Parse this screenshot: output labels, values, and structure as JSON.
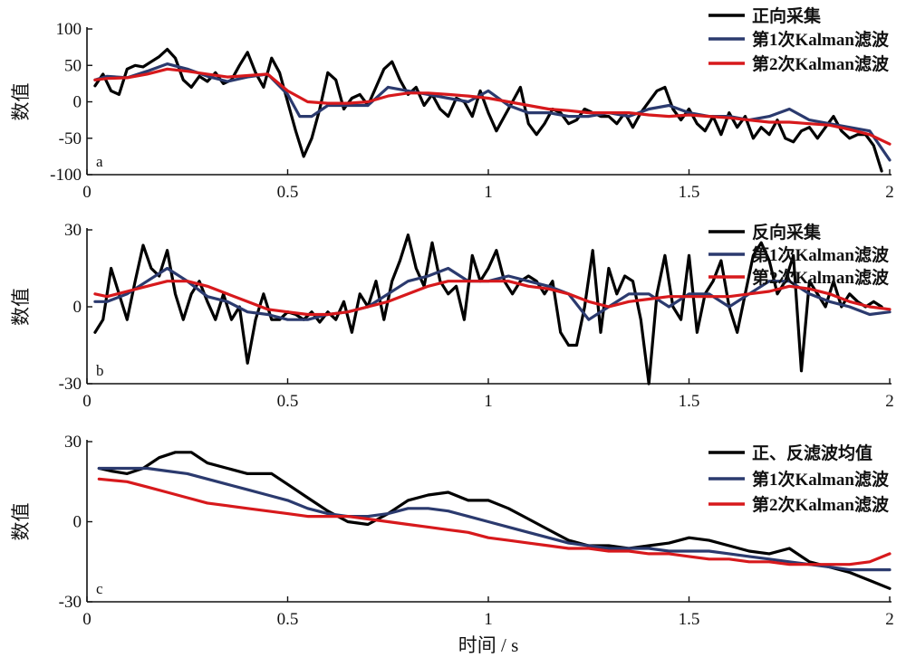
{
  "chart_data": [
    {
      "type": "line",
      "panel_label": "a",
      "ylabel": "数值",
      "xlim": [
        0,
        2
      ],
      "ylim": [
        -100,
        100
      ],
      "xticks": [
        "0",
        "0.5",
        "1",
        "1.5",
        "2"
      ],
      "yticks": [
        "100",
        "50",
        "0",
        "-50",
        "-100"
      ],
      "legend": "top-right",
      "series": [
        {
          "name": "正向采集",
          "color": "#000000",
          "x": [
            0.02,
            0.04,
            0.06,
            0.08,
            0.1,
            0.12,
            0.14,
            0.16,
            0.18,
            0.2,
            0.22,
            0.24,
            0.26,
            0.28,
            0.3,
            0.32,
            0.34,
            0.36,
            0.38,
            0.4,
            0.42,
            0.44,
            0.46,
            0.48,
            0.5,
            0.52,
            0.54,
            0.56,
            0.58,
            0.6,
            0.62,
            0.64,
            0.66,
            0.68,
            0.7,
            0.72,
            0.74,
            0.76,
            0.78,
            0.8,
            0.82,
            0.84,
            0.86,
            0.88,
            0.9,
            0.92,
            0.94,
            0.96,
            0.98,
            1.0,
            1.02,
            1.04,
            1.06,
            1.08,
            1.1,
            1.12,
            1.14,
            1.16,
            1.18,
            1.2,
            1.22,
            1.24,
            1.26,
            1.28,
            1.3,
            1.32,
            1.34,
            1.36,
            1.38,
            1.4,
            1.42,
            1.44,
            1.46,
            1.48,
            1.5,
            1.52,
            1.54,
            1.56,
            1.58,
            1.6,
            1.62,
            1.64,
            1.66,
            1.68,
            1.7,
            1.72,
            1.74,
            1.76,
            1.78,
            1.8,
            1.82,
            1.84,
            1.86,
            1.88,
            1.9,
            1.92,
            1.94,
            1.96,
            1.98
          ],
          "y": [
            22,
            38,
            15,
            10,
            45,
            50,
            48,
            55,
            62,
            72,
            60,
            30,
            20,
            35,
            28,
            40,
            25,
            30,
            50,
            68,
            40,
            20,
            60,
            40,
            0,
            -40,
            -75,
            -50,
            -10,
            40,
            30,
            -10,
            5,
            10,
            -5,
            20,
            45,
            55,
            30,
            10,
            20,
            -5,
            10,
            -10,
            -20,
            5,
            0,
            -20,
            15,
            -15,
            -40,
            -20,
            0,
            20,
            -30,
            -45,
            -30,
            -10,
            -15,
            -30,
            -25,
            -10,
            -15,
            -20,
            -20,
            -30,
            -15,
            -35,
            -15,
            0,
            15,
            20,
            -10,
            -25,
            -10,
            -30,
            -40,
            -20,
            -45,
            -15,
            -35,
            -20,
            -50,
            -35,
            -45,
            -25,
            -50,
            -55,
            -40,
            -35,
            -50,
            -35,
            -20,
            -40,
            -50,
            -45,
            -45,
            -60,
            -95
          ]
        },
        {
          "name": "第1次Kalman滤波",
          "color": "#2b3a6e",
          "x": [
            0.02,
            0.05,
            0.1,
            0.15,
            0.2,
            0.25,
            0.3,
            0.35,
            0.4,
            0.45,
            0.5,
            0.53,
            0.56,
            0.6,
            0.65,
            0.7,
            0.75,
            0.8,
            0.85,
            0.9,
            0.95,
            1.0,
            1.05,
            1.1,
            1.15,
            1.2,
            1.25,
            1.3,
            1.35,
            1.4,
            1.45,
            1.5,
            1.55,
            1.6,
            1.65,
            1.7,
            1.75,
            1.8,
            1.85,
            1.9,
            1.95,
            2.0
          ],
          "y": [
            30,
            35,
            33,
            42,
            52,
            45,
            35,
            28,
            34,
            38,
            10,
            -20,
            -20,
            -5,
            -5,
            -5,
            20,
            15,
            10,
            5,
            0,
            15,
            -5,
            -15,
            -15,
            -20,
            -20,
            -15,
            -20,
            -10,
            -5,
            -15,
            -20,
            -20,
            -25,
            -20,
            -10,
            -25,
            -30,
            -35,
            -40,
            -80
          ]
        },
        {
          "name": "第2次Kalman滤波",
          "color": "#d7191c",
          "x": [
            0.02,
            0.05,
            0.1,
            0.15,
            0.2,
            0.25,
            0.3,
            0.35,
            0.4,
            0.45,
            0.5,
            0.55,
            0.6,
            0.65,
            0.7,
            0.75,
            0.8,
            0.85,
            0.9,
            0.95,
            1.0,
            1.05,
            1.1,
            1.15,
            1.2,
            1.25,
            1.3,
            1.35,
            1.4,
            1.45,
            1.5,
            1.55,
            1.6,
            1.65,
            1.7,
            1.75,
            1.8,
            1.85,
            1.9,
            1.95,
            2.0
          ],
          "y": [
            30,
            32,
            33,
            38,
            45,
            42,
            38,
            34,
            36,
            38,
            15,
            0,
            -2,
            -2,
            0,
            8,
            12,
            12,
            10,
            8,
            5,
            0,
            -5,
            -10,
            -12,
            -15,
            -15,
            -15,
            -18,
            -20,
            -18,
            -20,
            -22,
            -25,
            -28,
            -28,
            -30,
            -32,
            -38,
            -45,
            -58
          ]
        }
      ]
    },
    {
      "type": "line",
      "panel_label": "b",
      "ylabel": "数值",
      "xlim": [
        0,
        2
      ],
      "ylim": [
        -30,
        30
      ],
      "xticks": [
        "0",
        "0.5",
        "1",
        "1.5",
        "2"
      ],
      "yticks": [
        "30",
        "0",
        "-30"
      ],
      "legend": "top-right",
      "series": [
        {
          "name": "反向采集",
          "color": "#000000",
          "x": [
            0.02,
            0.04,
            0.06,
            0.08,
            0.1,
            0.12,
            0.14,
            0.16,
            0.18,
            0.2,
            0.22,
            0.24,
            0.26,
            0.28,
            0.3,
            0.32,
            0.34,
            0.36,
            0.38,
            0.4,
            0.42,
            0.44,
            0.46,
            0.48,
            0.5,
            0.52,
            0.54,
            0.56,
            0.58,
            0.6,
            0.62,
            0.64,
            0.66,
            0.68,
            0.7,
            0.72,
            0.74,
            0.76,
            0.78,
            0.8,
            0.82,
            0.84,
            0.86,
            0.88,
            0.9,
            0.92,
            0.94,
            0.96,
            0.98,
            1.0,
            1.02,
            1.04,
            1.06,
            1.08,
            1.1,
            1.12,
            1.14,
            1.16,
            1.18,
            1.2,
            1.22,
            1.24,
            1.26,
            1.28,
            1.3,
            1.32,
            1.34,
            1.36,
            1.38,
            1.4,
            1.42,
            1.44,
            1.46,
            1.48,
            1.5,
            1.52,
            1.54,
            1.56,
            1.58,
            1.6,
            1.62,
            1.64,
            1.66,
            1.68,
            1.7,
            1.72,
            1.74,
            1.76,
            1.78,
            1.8,
            1.82,
            1.84,
            1.86,
            1.88,
            1.9,
            1.92,
            1.94,
            1.96,
            1.98
          ],
          "y": [
            -10,
            -5,
            15,
            5,
            -5,
            10,
            24,
            15,
            12,
            22,
            5,
            -5,
            5,
            10,
            2,
            -5,
            5,
            -5,
            0,
            -22,
            -5,
            5,
            -5,
            -5,
            -2,
            -3,
            -5,
            -2,
            -6,
            -2,
            -5,
            2,
            -10,
            5,
            0,
            10,
            -5,
            10,
            18,
            28,
            15,
            8,
            25,
            10,
            5,
            8,
            -5,
            20,
            10,
            15,
            22,
            10,
            5,
            10,
            12,
            10,
            5,
            10,
            -10,
            -15,
            -15,
            0,
            22,
            -10,
            15,
            5,
            12,
            10,
            -5,
            -30,
            5,
            20,
            0,
            -5,
            20,
            -10,
            5,
            10,
            18,
            0,
            -10,
            5,
            20,
            25,
            18,
            5,
            10,
            20,
            -25,
            10,
            5,
            0,
            10,
            0,
            5,
            2,
            0,
            2,
            0
          ]
        },
        {
          "name": "第1次Kalman滤波",
          "color": "#2b3a6e",
          "x": [
            0.02,
            0.05,
            0.1,
            0.15,
            0.2,
            0.25,
            0.3,
            0.35,
            0.4,
            0.45,
            0.5,
            0.55,
            0.6,
            0.65,
            0.7,
            0.75,
            0.8,
            0.85,
            0.9,
            0.95,
            1.0,
            1.05,
            1.1,
            1.15,
            1.2,
            1.25,
            1.3,
            1.35,
            1.4,
            1.45,
            1.5,
            1.55,
            1.6,
            1.65,
            1.7,
            1.75,
            1.8,
            1.85,
            1.9,
            1.95,
            2.0
          ],
          "y": [
            2,
            2,
            5,
            10,
            15,
            10,
            4,
            2,
            -2,
            -3,
            -5,
            -5,
            -3,
            -2,
            0,
            5,
            10,
            12,
            15,
            10,
            10,
            12,
            10,
            8,
            5,
            -5,
            0,
            5,
            5,
            0,
            5,
            5,
            0,
            5,
            10,
            10,
            5,
            2,
            0,
            -3,
            -2
          ]
        },
        {
          "name": "第2次Kalman滤波",
          "color": "#d7191c",
          "x": [
            0.02,
            0.05,
            0.1,
            0.15,
            0.2,
            0.25,
            0.3,
            0.35,
            0.4,
            0.45,
            0.5,
            0.55,
            0.6,
            0.65,
            0.7,
            0.75,
            0.8,
            0.85,
            0.9,
            0.95,
            1.0,
            1.05,
            1.1,
            1.15,
            1.2,
            1.25,
            1.3,
            1.35,
            1.4,
            1.45,
            1.5,
            1.55,
            1.6,
            1.65,
            1.7,
            1.75,
            1.8,
            1.85,
            1.9,
            1.95,
            2.0
          ],
          "y": [
            5,
            4,
            6,
            8,
            10,
            10,
            8,
            5,
            2,
            -1,
            -2,
            -3,
            -3,
            -2,
            0,
            2,
            5,
            8,
            10,
            10,
            10,
            10,
            8,
            7,
            5,
            2,
            0,
            2,
            3,
            4,
            4,
            4,
            4,
            5,
            6,
            8,
            7,
            5,
            2,
            0,
            -1
          ]
        }
      ]
    },
    {
      "type": "line",
      "panel_label": "c",
      "ylabel": "数值",
      "xlabel": "时间 / s",
      "xlim": [
        0,
        2
      ],
      "ylim": [
        -30,
        30
      ],
      "xticks": [
        "0",
        "0.5",
        "1",
        "1.5",
        "2"
      ],
      "yticks": [
        "30",
        "0",
        "-30"
      ],
      "legend": "top-right",
      "series": [
        {
          "name": "正、反滤波均值",
          "color": "#000000",
          "x": [
            0.03,
            0.06,
            0.1,
            0.14,
            0.18,
            0.22,
            0.26,
            0.3,
            0.35,
            0.4,
            0.46,
            0.5,
            0.55,
            0.6,
            0.65,
            0.7,
            0.75,
            0.8,
            0.85,
            0.9,
            0.95,
            1.0,
            1.05,
            1.1,
            1.15,
            1.2,
            1.25,
            1.3,
            1.35,
            1.4,
            1.45,
            1.5,
            1.55,
            1.6,
            1.65,
            1.7,
            1.75,
            1.8,
            1.85,
            1.9,
            1.95,
            2.0
          ],
          "y": [
            20,
            19,
            18,
            20,
            24,
            26,
            26,
            22,
            20,
            18,
            18,
            14,
            9,
            4,
            0,
            -1,
            3,
            8,
            10,
            11,
            8,
            8,
            5,
            1,
            -3,
            -7,
            -9,
            -9,
            -10,
            -9,
            -8,
            -6,
            -7,
            -9,
            -11,
            -12,
            -10,
            -15,
            -17,
            -19,
            -22,
            -25
          ]
        },
        {
          "name": "第1次Kalman滤波",
          "color": "#2b3a6e",
          "x": [
            0.03,
            0.1,
            0.15,
            0.2,
            0.25,
            0.3,
            0.35,
            0.4,
            0.45,
            0.5,
            0.55,
            0.6,
            0.65,
            0.7,
            0.75,
            0.8,
            0.85,
            0.9,
            0.95,
            1.0,
            1.05,
            1.1,
            1.15,
            1.2,
            1.25,
            1.3,
            1.35,
            1.4,
            1.45,
            1.5,
            1.55,
            1.6,
            1.65,
            1.7,
            1.75,
            1.8,
            1.85,
            1.9,
            1.95,
            2.0
          ],
          "y": [
            20,
            20,
            20,
            19,
            18,
            16,
            14,
            12,
            10,
            8,
            5,
            3,
            2,
            2,
            3,
            5,
            5,
            4,
            2,
            0,
            -2,
            -4,
            -6,
            -8,
            -9,
            -10,
            -10,
            -10,
            -11,
            -11,
            -11,
            -12,
            -13,
            -14,
            -15,
            -16,
            -17,
            -18,
            -18,
            -18
          ]
        },
        {
          "name": "第2次Kalman滤波",
          "color": "#d7191c",
          "x": [
            0.03,
            0.1,
            0.15,
            0.2,
            0.25,
            0.3,
            0.35,
            0.4,
            0.45,
            0.5,
            0.55,
            0.6,
            0.65,
            0.7,
            0.75,
            0.8,
            0.85,
            0.9,
            0.95,
            1.0,
            1.05,
            1.1,
            1.15,
            1.2,
            1.25,
            1.3,
            1.35,
            1.4,
            1.45,
            1.5,
            1.55,
            1.6,
            1.65,
            1.7,
            1.75,
            1.8,
            1.85,
            1.9,
            1.95,
            2.0
          ],
          "y": [
            16,
            15,
            13,
            11,
            9,
            7,
            6,
            5,
            4,
            3,
            2,
            2,
            2,
            1,
            0,
            -1,
            -2,
            -3,
            -4,
            -6,
            -7,
            -8,
            -9,
            -10,
            -10,
            -11,
            -11,
            -12,
            -12,
            -13,
            -14,
            -14,
            -15,
            -15,
            -16,
            -16,
            -16,
            -16,
            -15,
            -12
          ]
        }
      ]
    }
  ]
}
